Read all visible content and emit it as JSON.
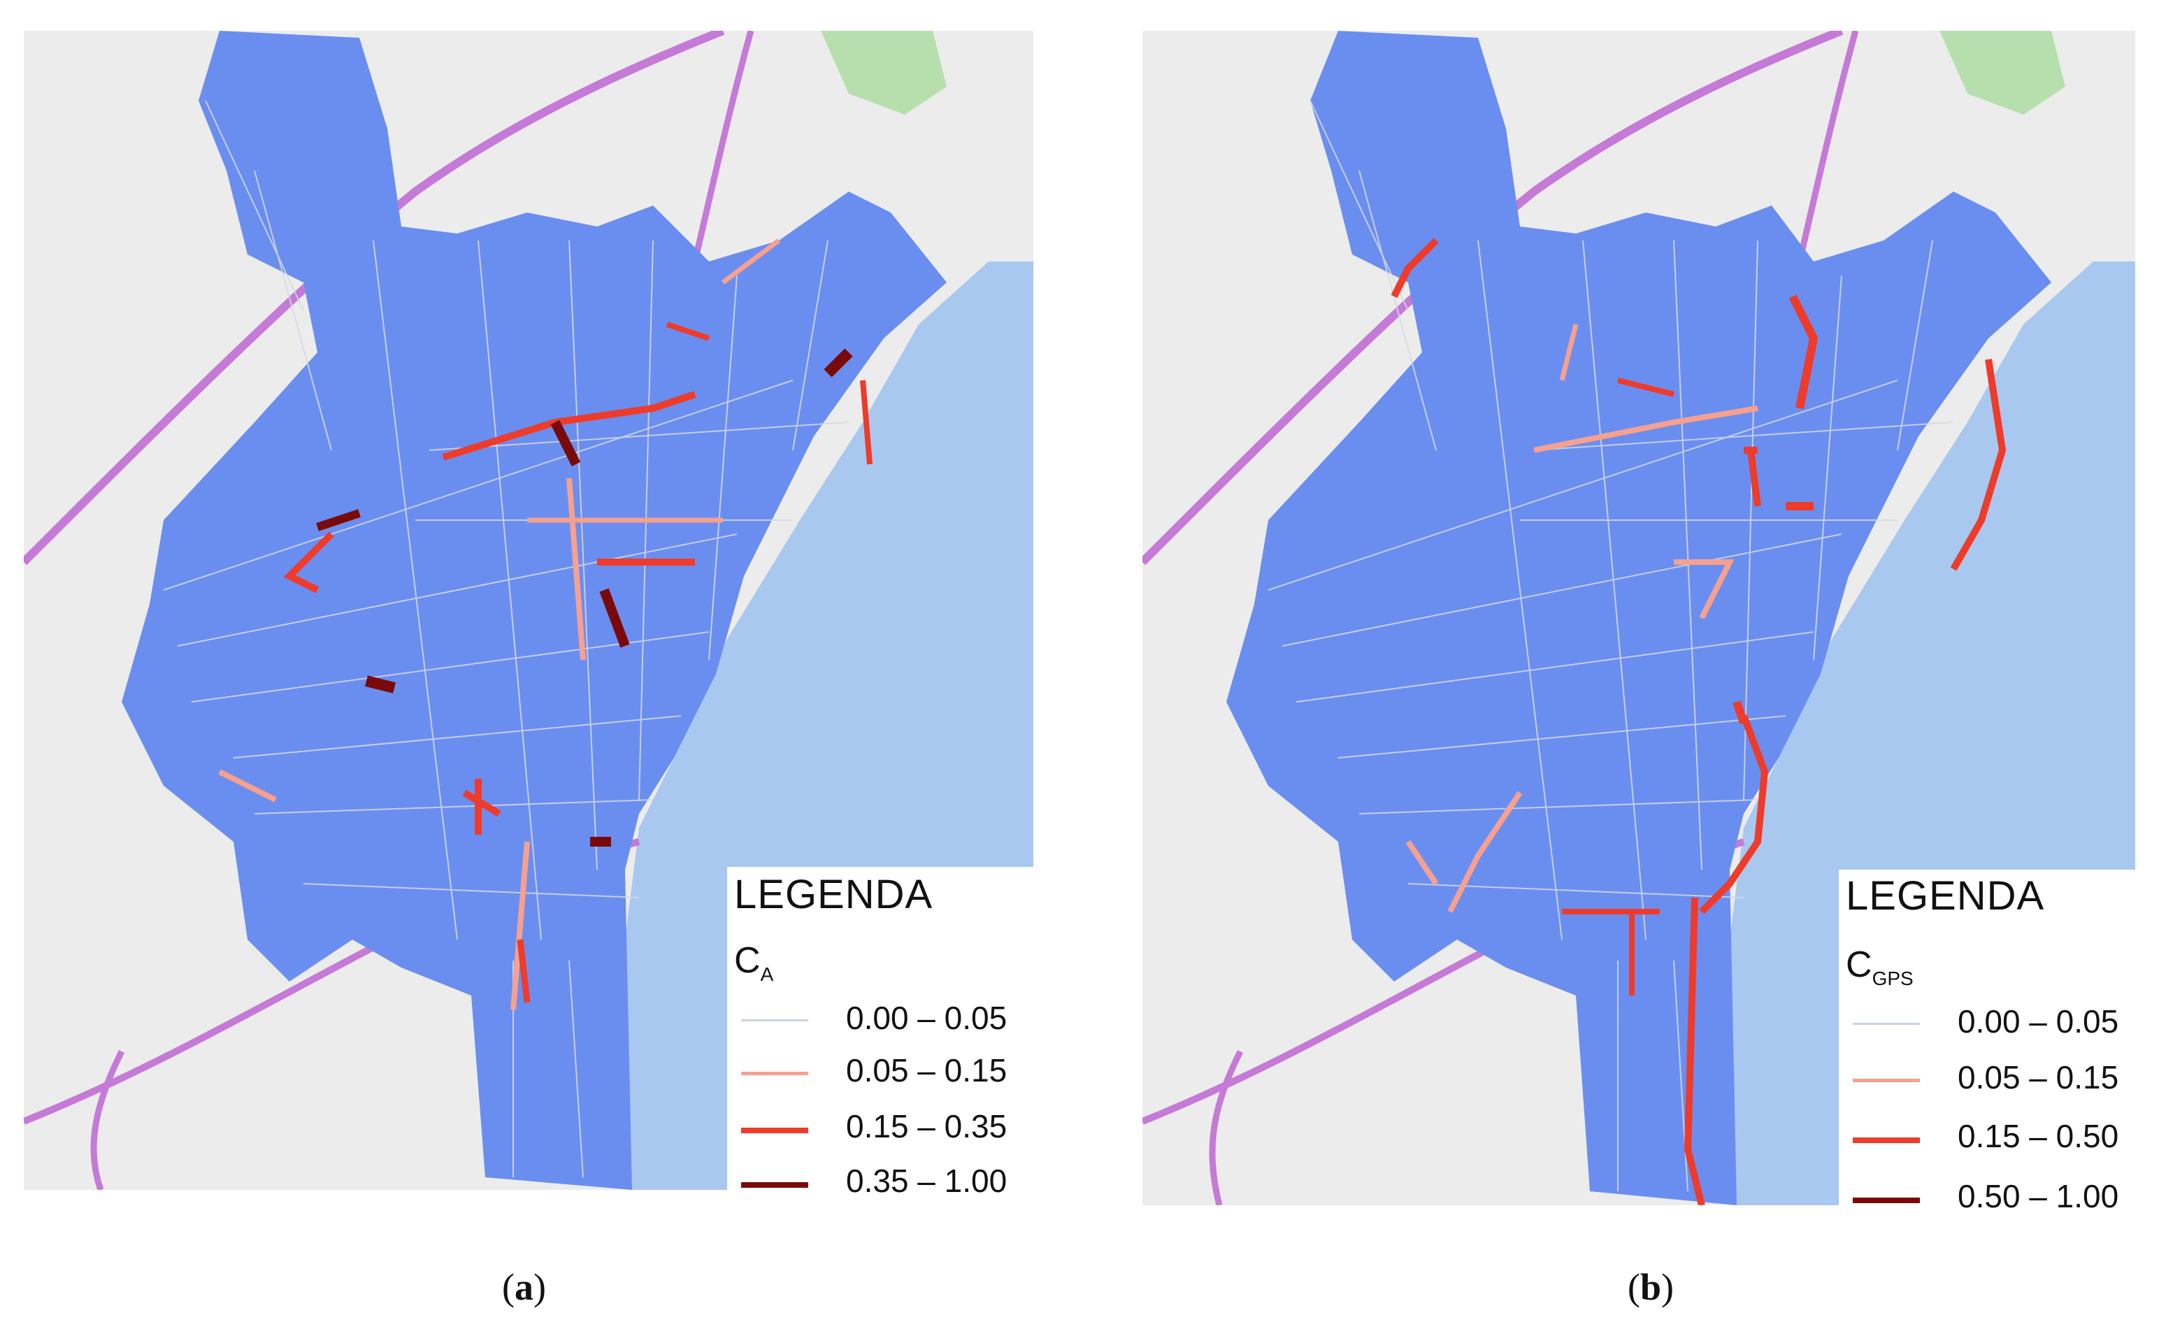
{
  "panels": [
    {
      "id": "a",
      "caption_letter": "a",
      "legend": {
        "title": "LEGENDA",
        "variable_main": "C",
        "variable_sub": "A",
        "classes": [
          {
            "label": "0.00 – 0.05",
            "color": "#cdd3e6"
          },
          {
            "label": "0.05 – 0.15",
            "color": "#f7a08e"
          },
          {
            "label": "0.15 – 0.35",
            "color": "#ee3b2a"
          },
          {
            "label": "0.35 – 1.00",
            "color": "#7a0a0a"
          }
        ]
      }
    },
    {
      "id": "b",
      "caption_letter": "b",
      "legend": {
        "title": "LEGENDA",
        "variable_main": "C",
        "variable_sub": "GPS",
        "classes": [
          {
            "label": "0.00 – 0.05",
            "color": "#cdd3e6"
          },
          {
            "label": "0.05 – 0.15",
            "color": "#f7a08e"
          },
          {
            "label": "0.15 – 0.50",
            "color": "#ee3b2a"
          },
          {
            "label": "0.50 – 1.00",
            "color": "#7a0a0a"
          }
        ]
      }
    }
  ],
  "colors": {
    "basemap": "#ececec",
    "sea": "#a8c8f0",
    "city_fill": "#6a8ef0",
    "road": "#d6d8e4",
    "motorway": "#c47ad6",
    "green": "#b7dfae"
  }
}
